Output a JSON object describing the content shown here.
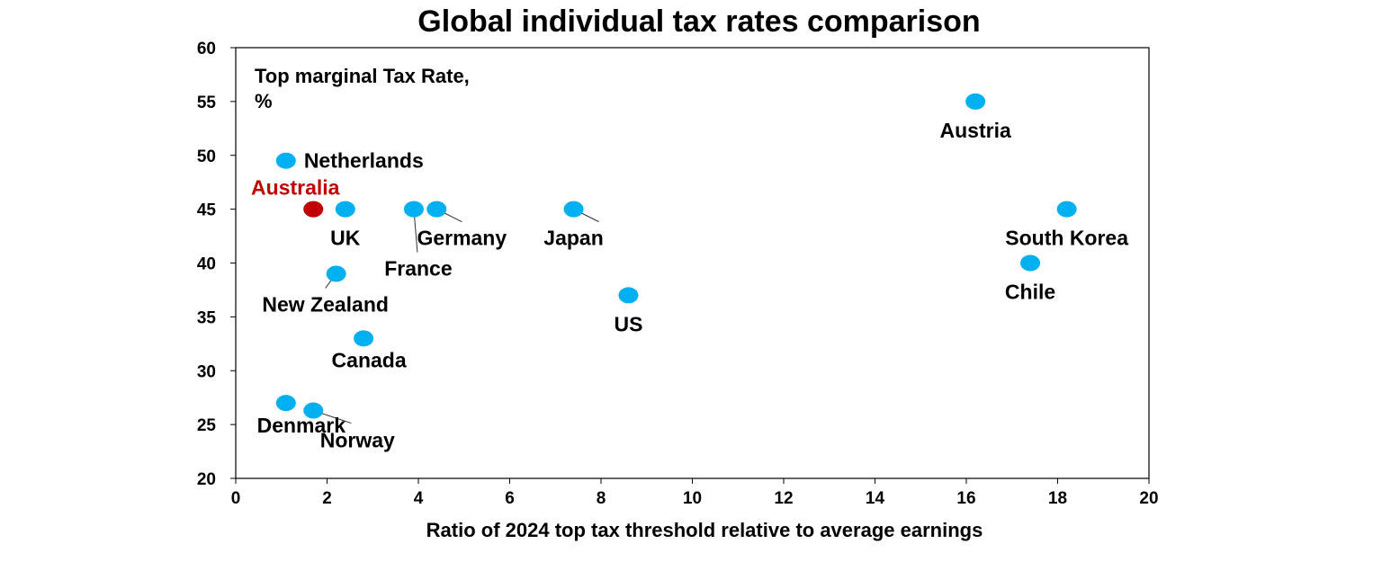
{
  "chart_data": {
    "type": "scatter",
    "title": "Global individual tax rates comparison",
    "xlabel": "Ratio of 2024 top tax threshold relative to average earnings",
    "ylabel_lines": [
      "Top marginal Tax Rate,",
      "%"
    ],
    "xlim": [
      0,
      20
    ],
    "ylim": [
      20,
      60
    ],
    "xticks": [
      "0",
      "2",
      "4",
      "6",
      "8",
      "10",
      "12",
      "14",
      "16",
      "18",
      "20"
    ],
    "yticks": [
      "20",
      "25",
      "30",
      "35",
      "40",
      "45",
      "50",
      "55",
      "60"
    ],
    "grid": false,
    "colors": {
      "default": "#00B0F0",
      "highlight": "#C00000"
    },
    "points": [
      {
        "label": "Austria",
        "x": 16.2,
        "y": 55,
        "highlight": false
      },
      {
        "label": "Netherlands",
        "x": 1.1,
        "y": 49.5,
        "highlight": false
      },
      {
        "label": "Australia",
        "x": 1.7,
        "y": 45,
        "highlight": true
      },
      {
        "label": "UK",
        "x": 2.4,
        "y": 45,
        "highlight": false
      },
      {
        "label": "France",
        "x": 3.9,
        "y": 45,
        "highlight": false
      },
      {
        "label": "Germany",
        "x": 4.4,
        "y": 45,
        "highlight": false
      },
      {
        "label": "Japan",
        "x": 7.4,
        "y": 45,
        "highlight": false
      },
      {
        "label": "South Korea",
        "x": 18.2,
        "y": 45,
        "highlight": false
      },
      {
        "label": "Chile",
        "x": 17.4,
        "y": 40,
        "highlight": false
      },
      {
        "label": "New Zealand",
        "x": 2.2,
        "y": 39,
        "highlight": false
      },
      {
        "label": "US",
        "x": 8.6,
        "y": 37,
        "highlight": false
      },
      {
        "label": "Canada",
        "x": 2.8,
        "y": 33,
        "highlight": false
      },
      {
        "label": "Denmark",
        "x": 1.1,
        "y": 27,
        "highlight": false
      },
      {
        "label": "Norway",
        "x": 1.7,
        "y": 26.3,
        "highlight": false
      }
    ]
  }
}
